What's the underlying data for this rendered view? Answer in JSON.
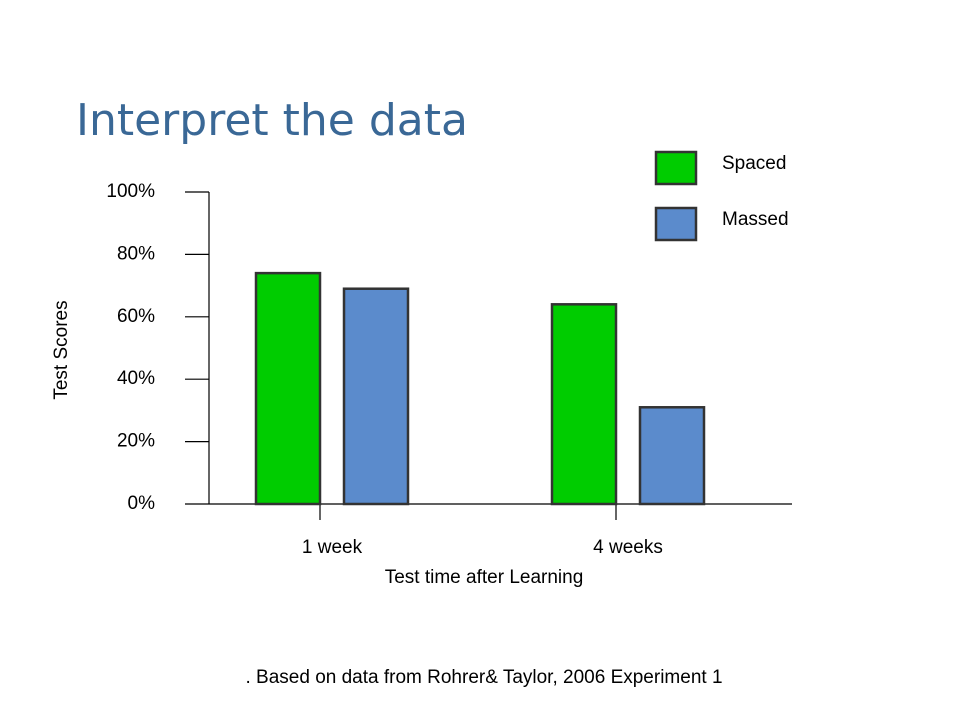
{
  "chart_data": {
    "type": "bar",
    "title": "Interpret the data",
    "footnote": ". Based on data from Rohrer& Taylor, 2006 Experiment 1",
    "x_label": "Test time after Learning",
    "y_label": "Test Scores",
    "categories": [
      "1 week",
      "4 weeks"
    ],
    "series": [
      {
        "name": "Spaced",
        "color": "#00cc00",
        "values": [
          74,
          64
        ]
      },
      {
        "name": "Massed",
        "color": "#5b8bcc",
        "values": [
          69,
          31
        ]
      }
    ],
    "ylim": [
      0,
      100
    ],
    "yticks": [
      {
        "value": 0,
        "label": "0%"
      },
      {
        "value": 20,
        "label": "20%"
      },
      {
        "value": 40,
        "label": "40%"
      },
      {
        "value": 60,
        "label": "60%"
      },
      {
        "value": 80,
        "label": "80%"
      },
      {
        "value": 100,
        "label": "100%"
      }
    ],
    "legend": "top-right"
  }
}
